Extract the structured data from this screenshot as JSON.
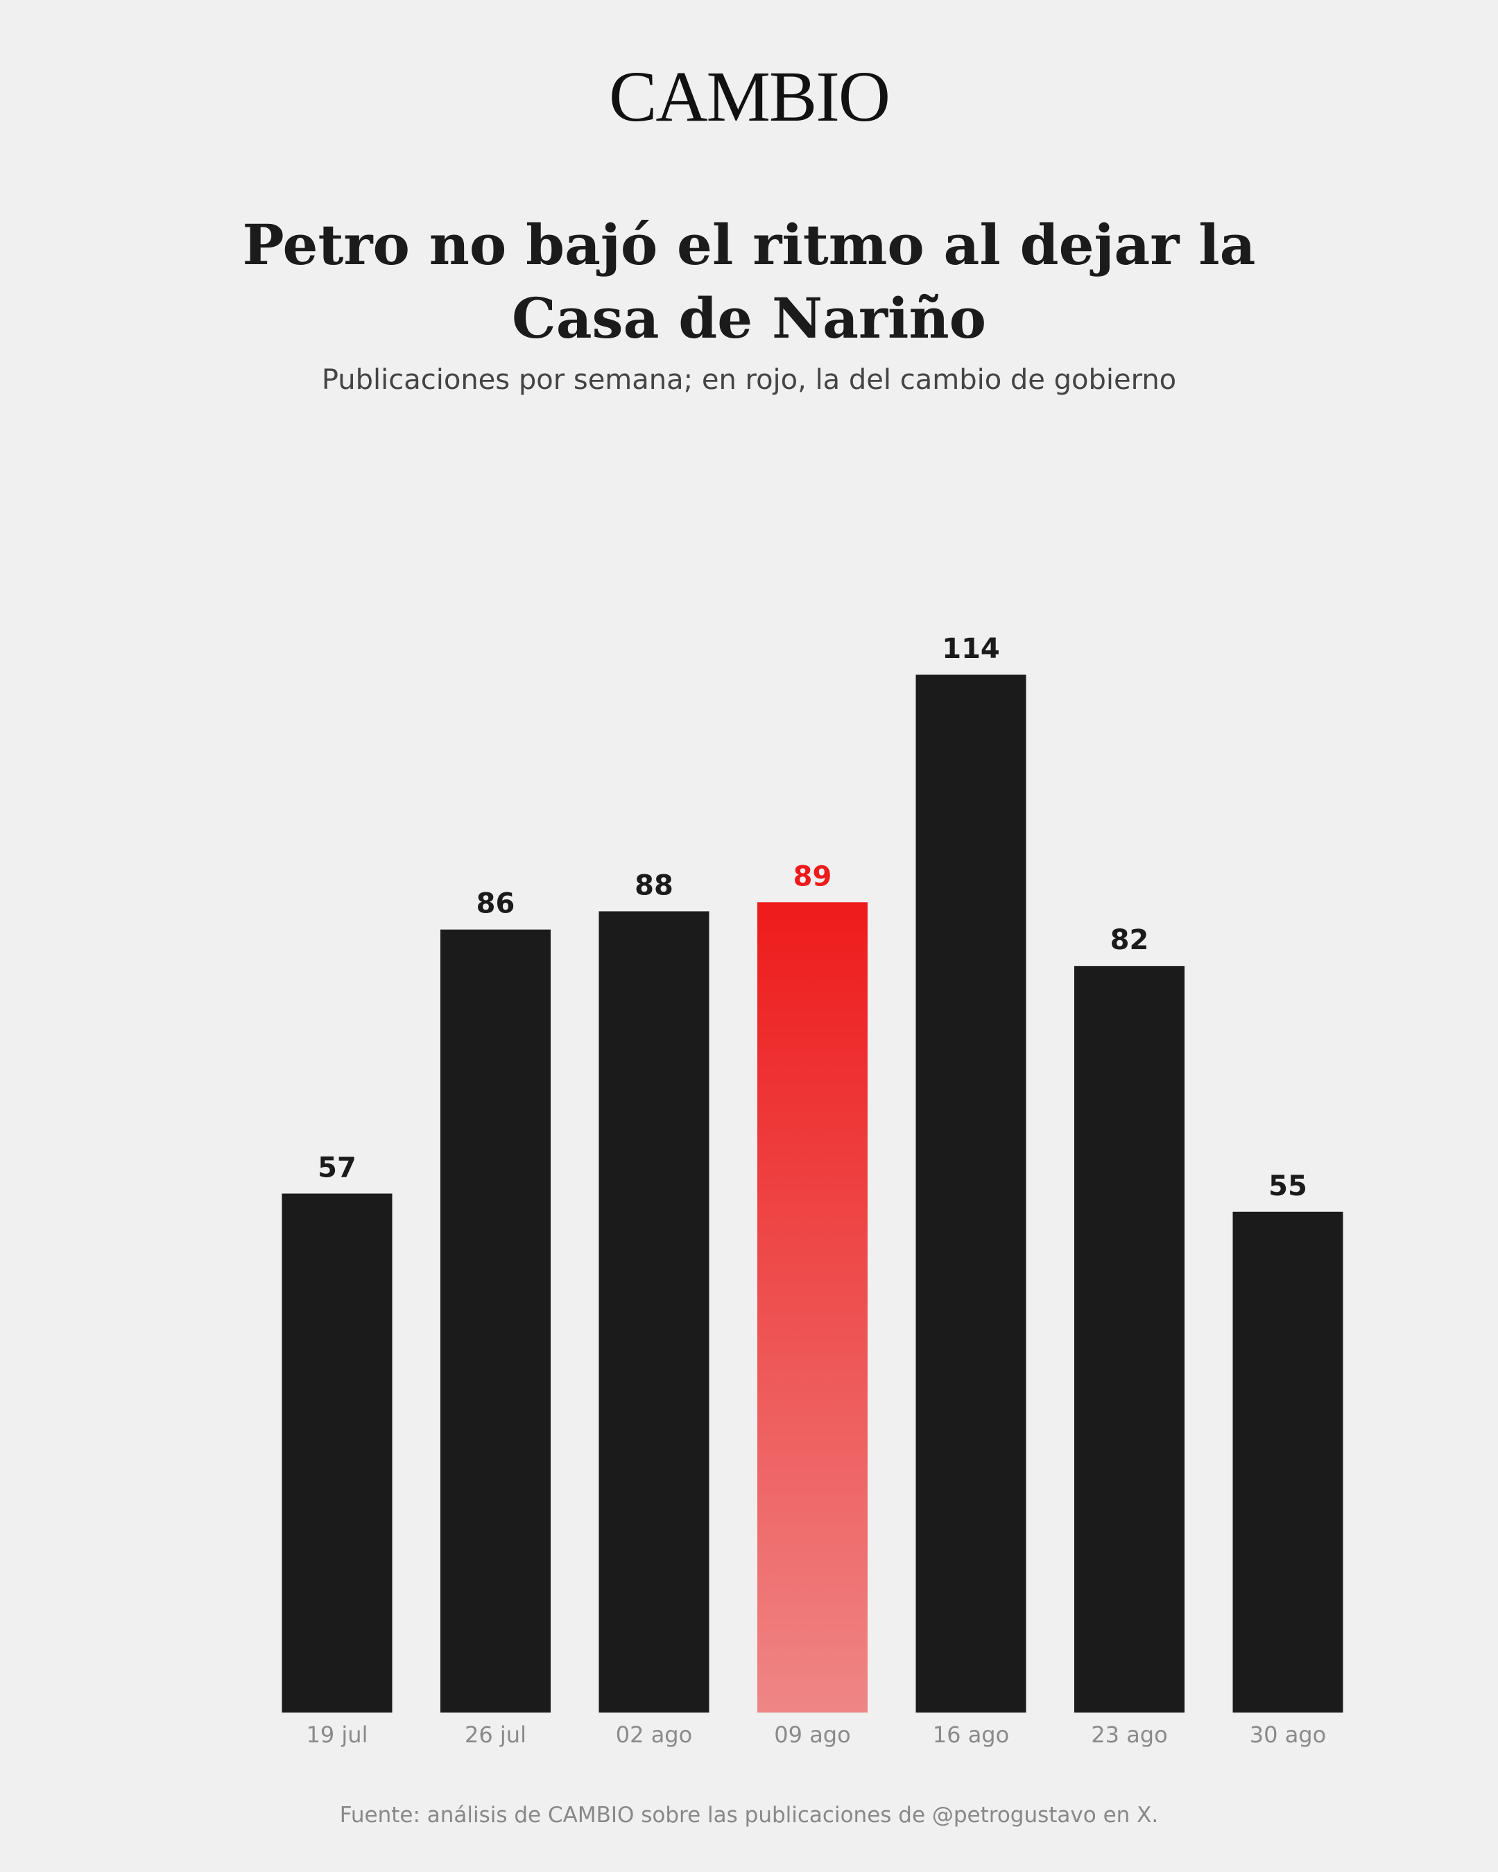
{
  "logo": "CAMBIO",
  "chart_data": {
    "type": "bar",
    "title": "Petro no bajó el ritmo al dejar la Casa de Nariño",
    "subtitle": "Publicaciones por semana; en rojo, la del cambio de gobierno",
    "categories": [
      "19 jul",
      "26 jul",
      "02 ago",
      "09 ago",
      "16 ago",
      "23 ago",
      "30 ago"
    ],
    "values": [
      57,
      86,
      88,
      89,
      114,
      82,
      55
    ],
    "color": "#1b1b1b",
    "highlight": {
      "index": 3,
      "color": "#ee1b1b"
    },
    "source": "Fuente: análisis de CAMBIO sobre las publicaciones de @petrogustavo en X."
  }
}
